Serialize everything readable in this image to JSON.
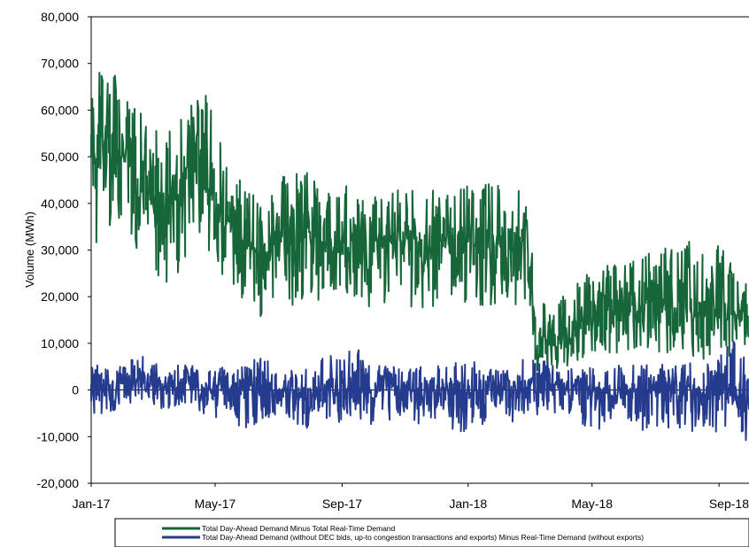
{
  "chart_data": {
    "type": "line",
    "title": "",
    "xlabel": "",
    "ylabel": "Volume (MWh)",
    "ylim": [
      -20000,
      80000
    ],
    "yticks": [
      -20000,
      -10000,
      0,
      10000,
      20000,
      30000,
      40000,
      50000,
      60000,
      70000,
      80000
    ],
    "ytick_labels": [
      "-20,000",
      "-10,000",
      "0",
      "10,000",
      "20,000",
      "30,000",
      "40,000",
      "50,000",
      "60,000",
      "70,000",
      "80,000"
    ],
    "xlim": [
      "2017-01-01",
      "2018-09-30"
    ],
    "xtick_labels": [
      "Jan-17",
      "May-17",
      "Sep-17",
      "Jan-18",
      "May-18",
      "Sep-18"
    ],
    "xtick_dates": [
      "2017-01-01",
      "2017-05-01",
      "2017-09-01",
      "2018-01-01",
      "2018-05-01",
      "2018-09-01"
    ],
    "grid": false,
    "legend_position": "bottom",
    "series": [
      {
        "name": "Total Day-Ahead Demand Minus Total Real-Time Demand",
        "color": "#17663a",
        "x": [
          "2017-01-01",
          "2017-01-15",
          "2017-02-01",
          "2017-02-15",
          "2017-03-01",
          "2017-03-15",
          "2017-04-01",
          "2017-04-15",
          "2017-05-01",
          "2017-05-15",
          "2017-06-01",
          "2017-06-15",
          "2017-07-01",
          "2017-07-15",
          "2017-08-01",
          "2017-08-15",
          "2017-09-01",
          "2017-09-15",
          "2017-10-01",
          "2017-10-15",
          "2017-11-01",
          "2017-11-15",
          "2017-12-01",
          "2017-12-15",
          "2018-01-01",
          "2018-01-15",
          "2018-02-01",
          "2018-02-15",
          "2018-03-01",
          "2018-03-08",
          "2018-03-15",
          "2018-04-01",
          "2018-04-15",
          "2018-05-01",
          "2018-05-15",
          "2018-06-01",
          "2018-06-15",
          "2018-07-01",
          "2018-07-15",
          "2018-08-01",
          "2018-08-15",
          "2018-09-01",
          "2018-09-15",
          "2018-09-30"
        ],
        "y": [
          48000,
          52000,
          50000,
          45000,
          40000,
          38000,
          44000,
          48000,
          40000,
          35000,
          31000,
          29000,
          33000,
          30000,
          34000,
          31000,
          31000,
          33000,
          30000,
          32000,
          32000,
          29000,
          31000,
          34000,
          32000,
          30000,
          31000,
          30000,
          32000,
          6000,
          9000,
          11000,
          13000,
          16000,
          18000,
          17000,
          18000,
          19000,
          17000,
          18000,
          16000,
          17000,
          16000,
          16000
        ],
        "y_max": [
          65000,
          71000,
          65000,
          60000,
          58000,
          55000,
          60000,
          69000,
          57000,
          52000,
          45000,
          40000,
          44000,
          49000,
          47000,
          44000,
          45000,
          45000,
          43000,
          43000,
          44000,
          42000,
          45000,
          46000,
          49000,
          46000,
          45000,
          44000,
          42000,
          15000,
          20000,
          22000,
          23000,
          26000,
          27000,
          28000,
          29000,
          30000,
          32000,
          33000,
          30000,
          34000,
          31000,
          25000
        ],
        "y_min": [
          28000,
          35000,
          33000,
          30000,
          26000,
          21000,
          27000,
          28000,
          26000,
          23000,
          18000,
          15000,
          20000,
          17000,
          19000,
          18000,
          16000,
          19000,
          17000,
          18000,
          19000,
          16000,
          18000,
          20000,
          18000,
          17000,
          19000,
          18000,
          19000,
          1000,
          3000,
          4000,
          6000,
          8000,
          8000,
          8000,
          9000,
          8000,
          7000,
          8000,
          6000,
          8000,
          7000,
          8000
        ]
      },
      {
        "name": "Total Day-Ahead Demand (without DEC bids, up-to congestion transactions and exports) Minus Real-Time Demand (without exports)",
        "color": "#253b8e",
        "x": [
          "2017-01-01",
          "2017-01-15",
          "2017-02-01",
          "2017-02-15",
          "2017-03-01",
          "2017-03-15",
          "2017-04-01",
          "2017-04-15",
          "2017-05-01",
          "2017-05-15",
          "2017-06-01",
          "2017-06-15",
          "2017-07-01",
          "2017-07-15",
          "2017-08-01",
          "2017-08-15",
          "2017-09-01",
          "2017-09-15",
          "2017-10-01",
          "2017-10-15",
          "2017-11-01",
          "2017-11-15",
          "2017-12-01",
          "2017-12-15",
          "2018-01-01",
          "2018-01-15",
          "2018-02-01",
          "2018-02-15",
          "2018-03-01",
          "2018-03-15",
          "2018-04-01",
          "2018-04-15",
          "2018-05-01",
          "2018-05-15",
          "2018-06-01",
          "2018-06-15",
          "2018-07-01",
          "2018-07-15",
          "2018-08-01",
          "2018-08-15",
          "2018-09-01",
          "2018-09-15",
          "2018-09-30"
        ],
        "y": [
          0,
          1000,
          1500,
          2000,
          1000,
          500,
          1500,
          1000,
          0,
          -500,
          0,
          500,
          -500,
          0,
          -1000,
          0,
          0,
          500,
          -500,
          0,
          500,
          -500,
          0,
          500,
          -1000,
          0,
          500,
          0,
          500,
          1000,
          1000,
          0,
          0,
          -500,
          0,
          -500,
          0,
          -1000,
          0,
          -500,
          -1000,
          -1500,
          -1500
        ],
        "y_max": [
          6000,
          5000,
          6000,
          8000,
          6000,
          5000,
          6000,
          6000,
          5000,
          5000,
          6000,
          7000,
          5000,
          5000,
          6000,
          7000,
          8000,
          9000,
          6000,
          5000,
          6000,
          5000,
          5000,
          6000,
          6000,
          6000,
          5000,
          6000,
          7000,
          7000,
          6000,
          5000,
          5000,
          5000,
          6000,
          5000,
          6000,
          5000,
          6000,
          6000,
          7000,
          11000,
          10000
        ],
        "y_min": [
          -6000,
          -5000,
          -4000,
          -3000,
          -5000,
          -6000,
          -4000,
          -5000,
          -6000,
          -6000,
          -9000,
          -7000,
          -6000,
          -7000,
          -9000,
          -8000,
          -7000,
          -6000,
          -8000,
          -7000,
          -6000,
          -8000,
          -7000,
          -9000,
          -9000,
          -8000,
          -7000,
          -7000,
          -6000,
          -5000,
          -5000,
          -6000,
          -9000,
          -8000,
          -7000,
          -10000,
          -8000,
          -9000,
          -10000,
          -9000,
          -10000,
          -12000,
          -12000
        ]
      }
    ]
  }
}
